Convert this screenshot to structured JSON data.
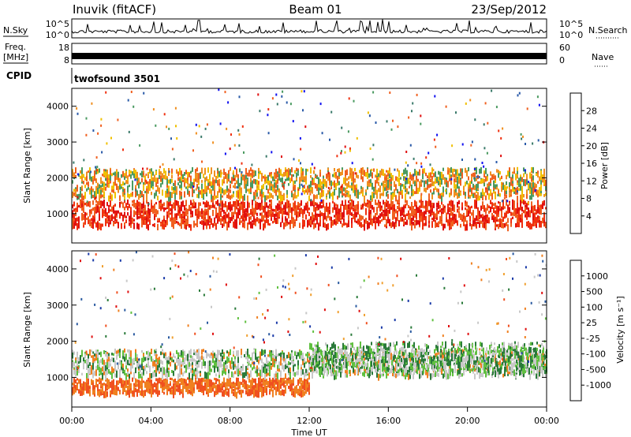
{
  "header": {
    "station": "Inuvik (fitACF)",
    "beam": "Beam 01",
    "date": "23/Sep/2012"
  },
  "top_panels": {
    "nsky_label": "N.Sky",
    "nsky_top": "10^5",
    "nsky_bottom": "10^0",
    "nsearch_label": "N.Search",
    "nsearch_top": "10^5",
    "nsearch_bottom": "10^0",
    "freq_label": "Freq.",
    "freq_unit": "[MHz]",
    "freq_top": "18",
    "freq_bottom": "8",
    "nave_label": "Nave",
    "nave_top": "60",
    "nave_bottom": "0",
    "cpid_label": "CPID",
    "cpid_value": "twofsound 3501"
  },
  "colors": {
    "power_scale": [
      "#1010f0",
      "#2a5aa8",
      "#3a7a6a",
      "#4a9a60",
      "#f0c000",
      "#f09020",
      "#f06020",
      "#f03010",
      "#e01010"
    ],
    "velocity_scale": [
      "#1a3aa8",
      "#2a5aa0",
      "#2a7a3a",
      "#60c040",
      "#c8c8c8",
      "#f0a030",
      "#f08020",
      "#f05020",
      "#e01010"
    ]
  },
  "chart_data": [
    {
      "type": "heatmap",
      "title": "",
      "xlabel": "",
      "ylabel": "Slant Range [km]",
      "xlim": [
        "00:00",
        "00:00"
      ],
      "ylim": [
        180,
        4500
      ],
      "y_ticks": [
        "1000",
        "2000",
        "3000",
        "4000"
      ],
      "colorbar": {
        "label": "Power [dB]",
        "ticks": [
          "4",
          "8",
          "12",
          "16",
          "20",
          "24",
          "28"
        ],
        "range": [
          0,
          30
        ]
      },
      "features": [
        {
          "time_hr": [
            0,
            24
          ],
          "range_km": [
            700,
            1400
          ],
          "value_db": 28
        },
        {
          "time_hr": [
            0,
            24
          ],
          "range_km": [
            1500,
            2300
          ],
          "value_db": 16
        }
      ]
    },
    {
      "type": "heatmap",
      "title": "",
      "xlabel": "Time UT",
      "ylabel": "Slant Range [km]",
      "xlim": [
        "00:00",
        "00:00"
      ],
      "ylim": [
        180,
        4500
      ],
      "x_ticks": [
        "00:00",
        "04:00",
        "08:00",
        "12:00",
        "16:00",
        "20:00",
        "00:00"
      ],
      "y_ticks": [
        "1000",
        "2000",
        "3000",
        "4000"
      ],
      "colorbar": {
        "label": "Velocity [m s⁻¹]",
        "ticks": [
          "1000",
          "500",
          "100",
          "25",
          "-25",
          "-100",
          "-500",
          "-1000"
        ],
        "range": [
          -1000,
          1000
        ]
      },
      "features": [
        {
          "time_hr": [
            0,
            12
          ],
          "range_km": [
            600,
            1000
          ],
          "value_ms": -300
        },
        {
          "time_hr": [
            0,
            24
          ],
          "range_km": [
            1100,
            1800
          ],
          "value_ms": 0
        },
        {
          "time_hr": [
            12,
            24
          ],
          "range_km": [
            1200,
            2000
          ],
          "value_ms": 150
        }
      ]
    }
  ]
}
